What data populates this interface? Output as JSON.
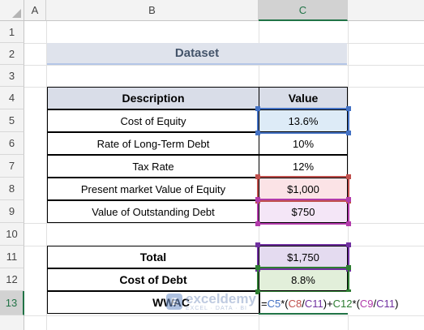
{
  "columns": [
    {
      "id": "A",
      "active": false
    },
    {
      "id": "B",
      "active": false
    },
    {
      "id": "C",
      "active": true
    }
  ],
  "rows": [
    "1",
    "2",
    "3",
    "4",
    "5",
    "6",
    "7",
    "8",
    "9",
    "10",
    "11",
    "12",
    "13"
  ],
  "active_row": "13",
  "title": "Dataset",
  "table": {
    "header": {
      "description": "Description",
      "value": "Value"
    },
    "items": [
      {
        "description": "Cost of Equity",
        "value": "13.6%"
      },
      {
        "description": "Rate of Long-Term Debt",
        "value": "10%"
      },
      {
        "description": "Tax Rate",
        "value": "12%"
      },
      {
        "description": "Present market Value of Equity",
        "value": "$1,000"
      },
      {
        "description": "Value of Outstanding Debt",
        "value": "$750"
      }
    ]
  },
  "summary": [
    {
      "label": "Total",
      "value": "$1,750"
    },
    {
      "label": "Cost of Debt",
      "value": "8.8%"
    },
    {
      "label": "WWAC"
    }
  ],
  "formula": {
    "eq": "=",
    "c5": "C5",
    "op1": "*(",
    "c8": "C8",
    "div1": "/",
    "c11a": "C11",
    "op2": ")+",
    "c12": "C12",
    "op3": "*(",
    "c9": "C9",
    "div2": "/",
    "c11b": "C11",
    "close": ")"
  },
  "watermark": {
    "logo": "E",
    "name": "exceldemy",
    "sub": "EXCEL · DATA · BI"
  },
  "colors": {
    "accent": "#217346",
    "ref_c5": "#4472c4",
    "ref_c8": "#c0504d",
    "ref_c9": "#b23aab",
    "ref_c11": "#7030a0",
    "ref_c12": "#2e7d32"
  }
}
